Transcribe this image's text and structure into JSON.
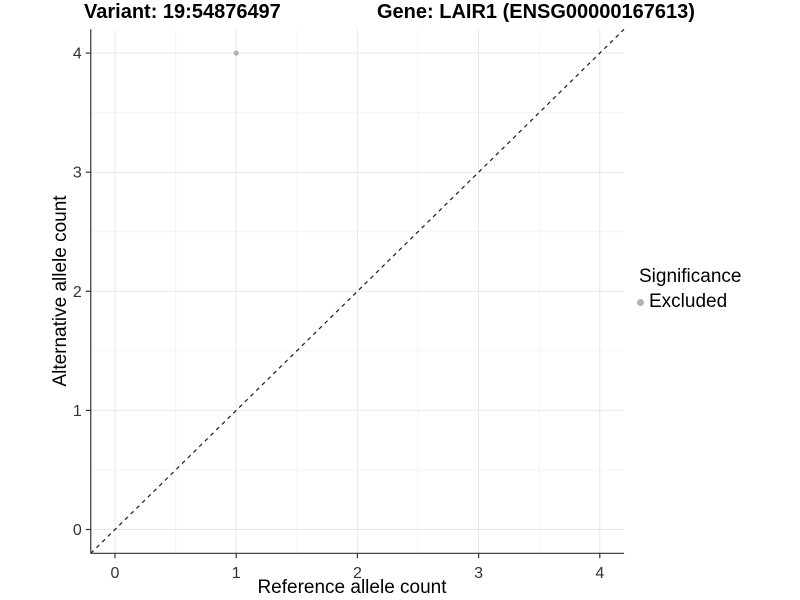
{
  "chart_data": {
    "type": "scatter",
    "title_left": "Variant: 19:54876497",
    "title_right": "Gene: LAIR1 (ENSG00000167613)",
    "xlabel": "Reference allele count",
    "ylabel": "Alternative allele count",
    "xlim": [
      -0.2,
      4.2
    ],
    "ylim": [
      -0.2,
      4.2
    ],
    "x_ticks": [
      0,
      1,
      2,
      3,
      4
    ],
    "y_ticks": [
      0,
      1,
      2,
      3,
      4
    ],
    "minor_grid_step": 0.5,
    "grid": "major+minor",
    "reference_line": {
      "type": "identity y=x",
      "style": "dashed"
    },
    "series": [
      {
        "name": "Excluded",
        "color": "#b3b3b3",
        "points": [
          {
            "x": 1,
            "y": 4
          }
        ]
      }
    ],
    "legend": {
      "title": "Significance",
      "position": "right",
      "entries": [
        {
          "label": "Excluded",
          "color": "#b3b3b3"
        }
      ]
    }
  },
  "colors": {
    "background": "#ffffff",
    "grid_major": "#e8e8e8",
    "grid_minor": "#f4f4f4",
    "axis": "#333333",
    "tick_label": "#333333",
    "reference_line": "#1a1a1a",
    "point": "#b3b3b3",
    "title_text": "#000000"
  }
}
